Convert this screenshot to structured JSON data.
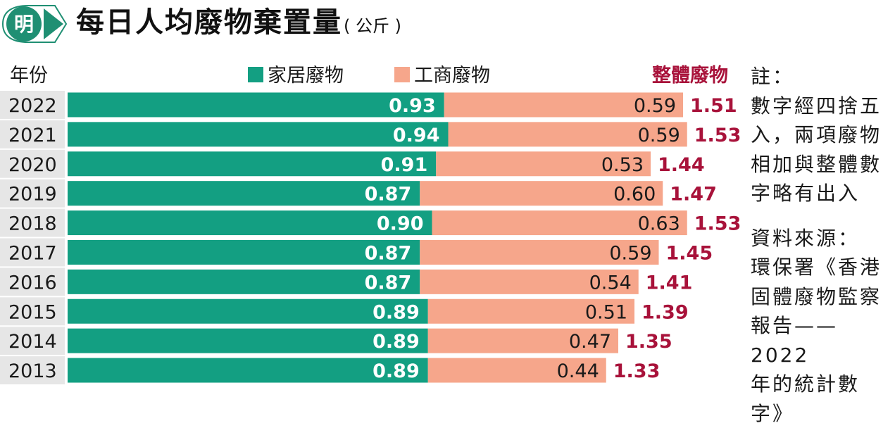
{
  "header": {
    "badge": "明",
    "title": "每日人均廢物棄置量",
    "unit": "( 公斤 )"
  },
  "note": {
    "heading": "註：",
    "body": "數字經四捨五\n入，兩項廢物\n相加與整體數\n字略有出入",
    "source_heading": "資料來源：",
    "source_body": "環保署《香港\n固體廢物監察\n報告——2022\n年的統計數\n字》"
  },
  "colors": {
    "household": "#139f82",
    "commercial": "#f6a68b",
    "total": "#a8123a",
    "year_bg": "#e6e6e6",
    "badge": "#1f8f73"
  },
  "chart_data": {
    "type": "bar",
    "stacked": true,
    "orientation": "horizontal",
    "title": "每日人均廢物棄置量",
    "unit": "( 公斤 )",
    "category_header": "年份",
    "categories": [
      "2022",
      "2021",
      "2020",
      "2019",
      "2018",
      "2017",
      "2016",
      "2015",
      "2014",
      "2013"
    ],
    "series": [
      {
        "name": "家居廢物",
        "values": [
          0.93,
          0.94,
          0.91,
          0.87,
          0.9,
          0.87,
          0.87,
          0.89,
          0.89,
          0.89
        ]
      },
      {
        "name": "工商廢物",
        "values": [
          0.59,
          0.59,
          0.53,
          0.6,
          0.63,
          0.59,
          0.54,
          0.51,
          0.47,
          0.44
        ]
      }
    ],
    "totals_name": "整體廢物",
    "totals": [
      1.51,
      1.53,
      1.44,
      1.47,
      1.53,
      1.45,
      1.41,
      1.39,
      1.35,
      1.33
    ],
    "grid": false,
    "legend": "top"
  }
}
